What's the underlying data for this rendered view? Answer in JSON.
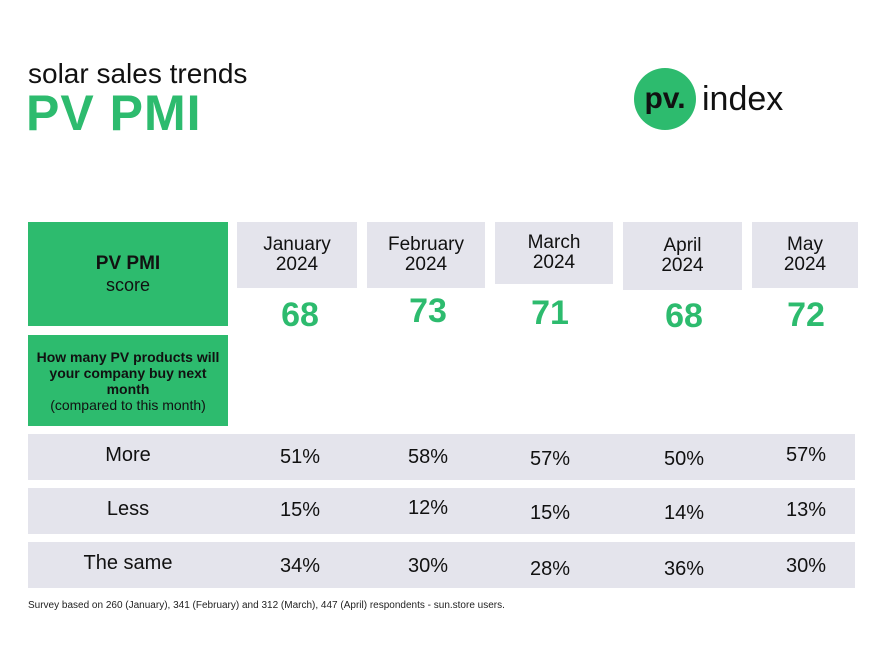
{
  "subtitle": "solar sales trends",
  "title": "PV PMI",
  "logo": {
    "mark": "pv.",
    "word": "index",
    "color": "#2dbb6e"
  },
  "label_box": {
    "title": "PV PMI",
    "sub": "score"
  },
  "question_box": {
    "line_bold": "How many PV products will your company buy next month",
    "line": "(compared to this month)"
  },
  "months": [
    {
      "label": "January\n2024",
      "score": "68"
    },
    {
      "label": "February\n2024",
      "score": "73"
    },
    {
      "label": "March\n2024",
      "score": "71"
    },
    {
      "label": "April\n2024",
      "score": "68"
    },
    {
      "label": "May\n2024",
      "score": "72"
    }
  ],
  "rows": [
    {
      "label": "More",
      "values": [
        "51%",
        "58%",
        "57%",
        "50%",
        "57%"
      ]
    },
    {
      "label": "Less",
      "values": [
        "15%",
        "12%",
        "15%",
        "14%",
        "13%"
      ]
    },
    {
      "label": "The same",
      "values": [
        "34%",
        "30%",
        "28%",
        "36%",
        "30%"
      ]
    }
  ],
  "footnote": "Survey based on 260 (January), 341 (February) and 312 (March), 447 (April) respondents - sun.store users."
}
